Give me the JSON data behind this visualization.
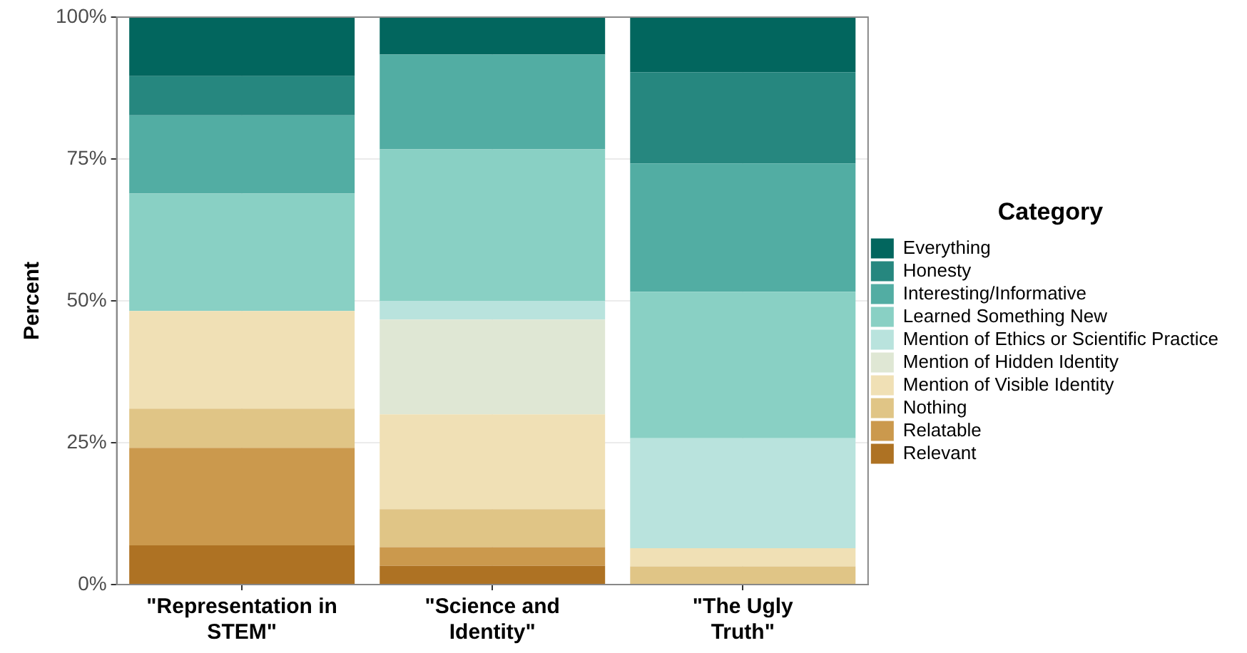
{
  "chart_data": {
    "type": "bar",
    "stacked": true,
    "ylabel": "Percent",
    "legend_title": "Category",
    "legend": "right",
    "grid": true,
    "categories": [
      "\"Representation in STEM\"",
      "\"Science and Identity\"",
      "\"The Ugly Truth\""
    ],
    "ylim": [
      0,
      100
    ],
    "yticks": [
      {
        "value": 0,
        "label": "0%"
      },
      {
        "value": 25,
        "label": "25%"
      },
      {
        "value": 50,
        "label": "50%"
      },
      {
        "value": 75,
        "label": "75%"
      },
      {
        "value": 100,
        "label": "100%"
      }
    ],
    "series": [
      {
        "name": "Relevant",
        "color": "#ae7223",
        "values": [
          6.9,
          3.3,
          0
        ]
      },
      {
        "name": "Relatable",
        "color": "#cb994d",
        "values": [
          17.2,
          3.3,
          0
        ]
      },
      {
        "name": "Nothing",
        "color": "#e0c586",
        "values": [
          6.9,
          6.7,
          3.2
        ]
      },
      {
        "name": "Mention of Visible Identity",
        "color": "#f0e0b5",
        "values": [
          17.2,
          16.7,
          3.2
        ]
      },
      {
        "name": "Mention of Hidden Identity",
        "color": "#dfe7d4",
        "values": [
          0,
          16.7,
          0
        ]
      },
      {
        "name": "Mention of Ethics or Scientific Practice",
        "color": "#b9e3dd",
        "values": [
          0,
          3.3,
          19.4
        ]
      },
      {
        "name": "Learned Something New",
        "color": "#89d0c4",
        "values": [
          20.7,
          26.7,
          25.8
        ]
      },
      {
        "name": "Interesting/Informative",
        "color": "#52ada3",
        "values": [
          13.8,
          16.7,
          22.6
        ]
      },
      {
        "name": "Honesty",
        "color": "#26877f",
        "values": [
          6.9,
          0,
          16.1
        ]
      },
      {
        "name": "Everything",
        "color": "#02665e",
        "values": [
          10.3,
          6.7,
          9.7
        ]
      }
    ]
  }
}
